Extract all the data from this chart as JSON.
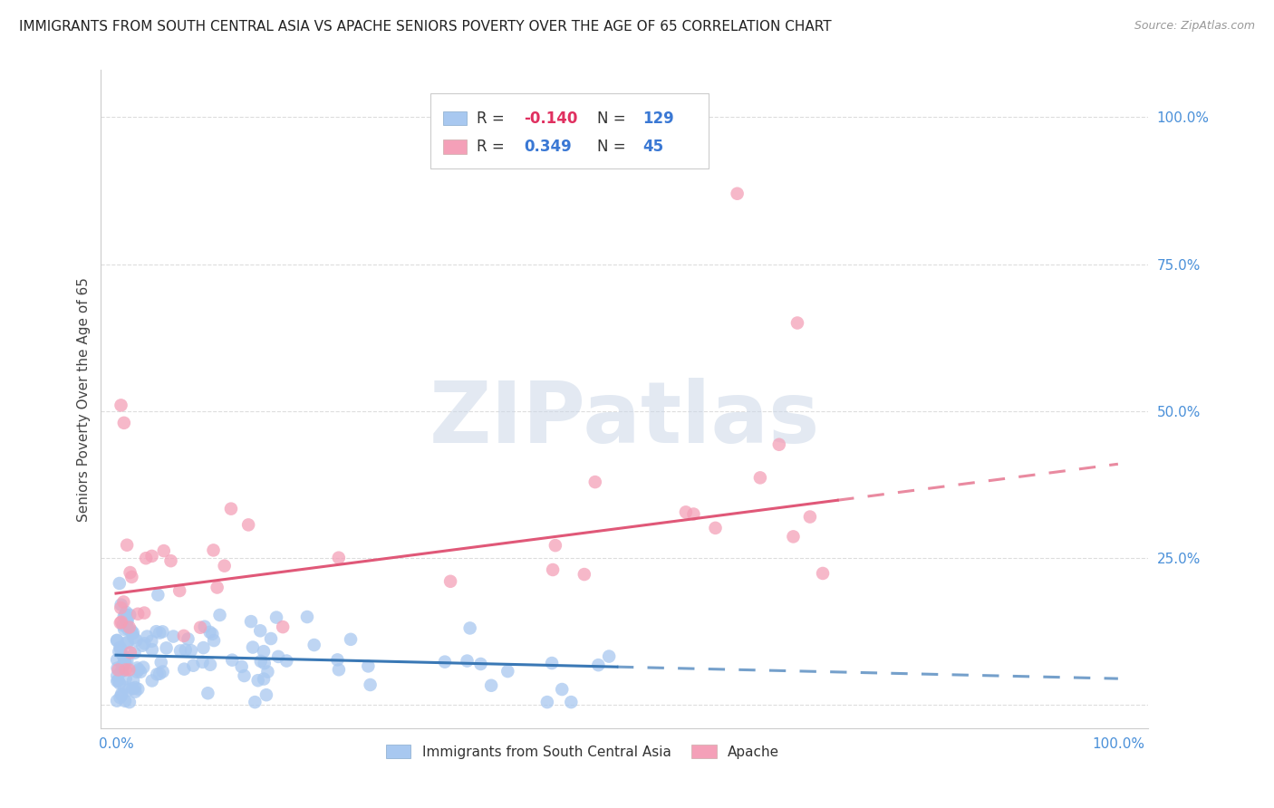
{
  "title": "IMMIGRANTS FROM SOUTH CENTRAL ASIA VS APACHE SENIORS POVERTY OVER THE AGE OF 65 CORRELATION CHART",
  "source": "Source: ZipAtlas.com",
  "ylabel": "Seniors Poverty Over the Age of 65",
  "blue_R": -0.14,
  "blue_N": 129,
  "pink_R": 0.349,
  "pink_N": 45,
  "blue_color": "#a8c8f0",
  "pink_color": "#f4a0b8",
  "blue_line_color": "#3a78b5",
  "pink_line_color": "#e05878",
  "legend_blue_label": "Immigrants from South Central Asia",
  "legend_pink_label": "Apache",
  "watermark_text": "ZIPatlas",
  "bg_color": "#ffffff",
  "grid_color": "#dddddd",
  "axis_label_color": "#4a90d9",
  "title_color": "#222222",
  "source_color": "#999999"
}
